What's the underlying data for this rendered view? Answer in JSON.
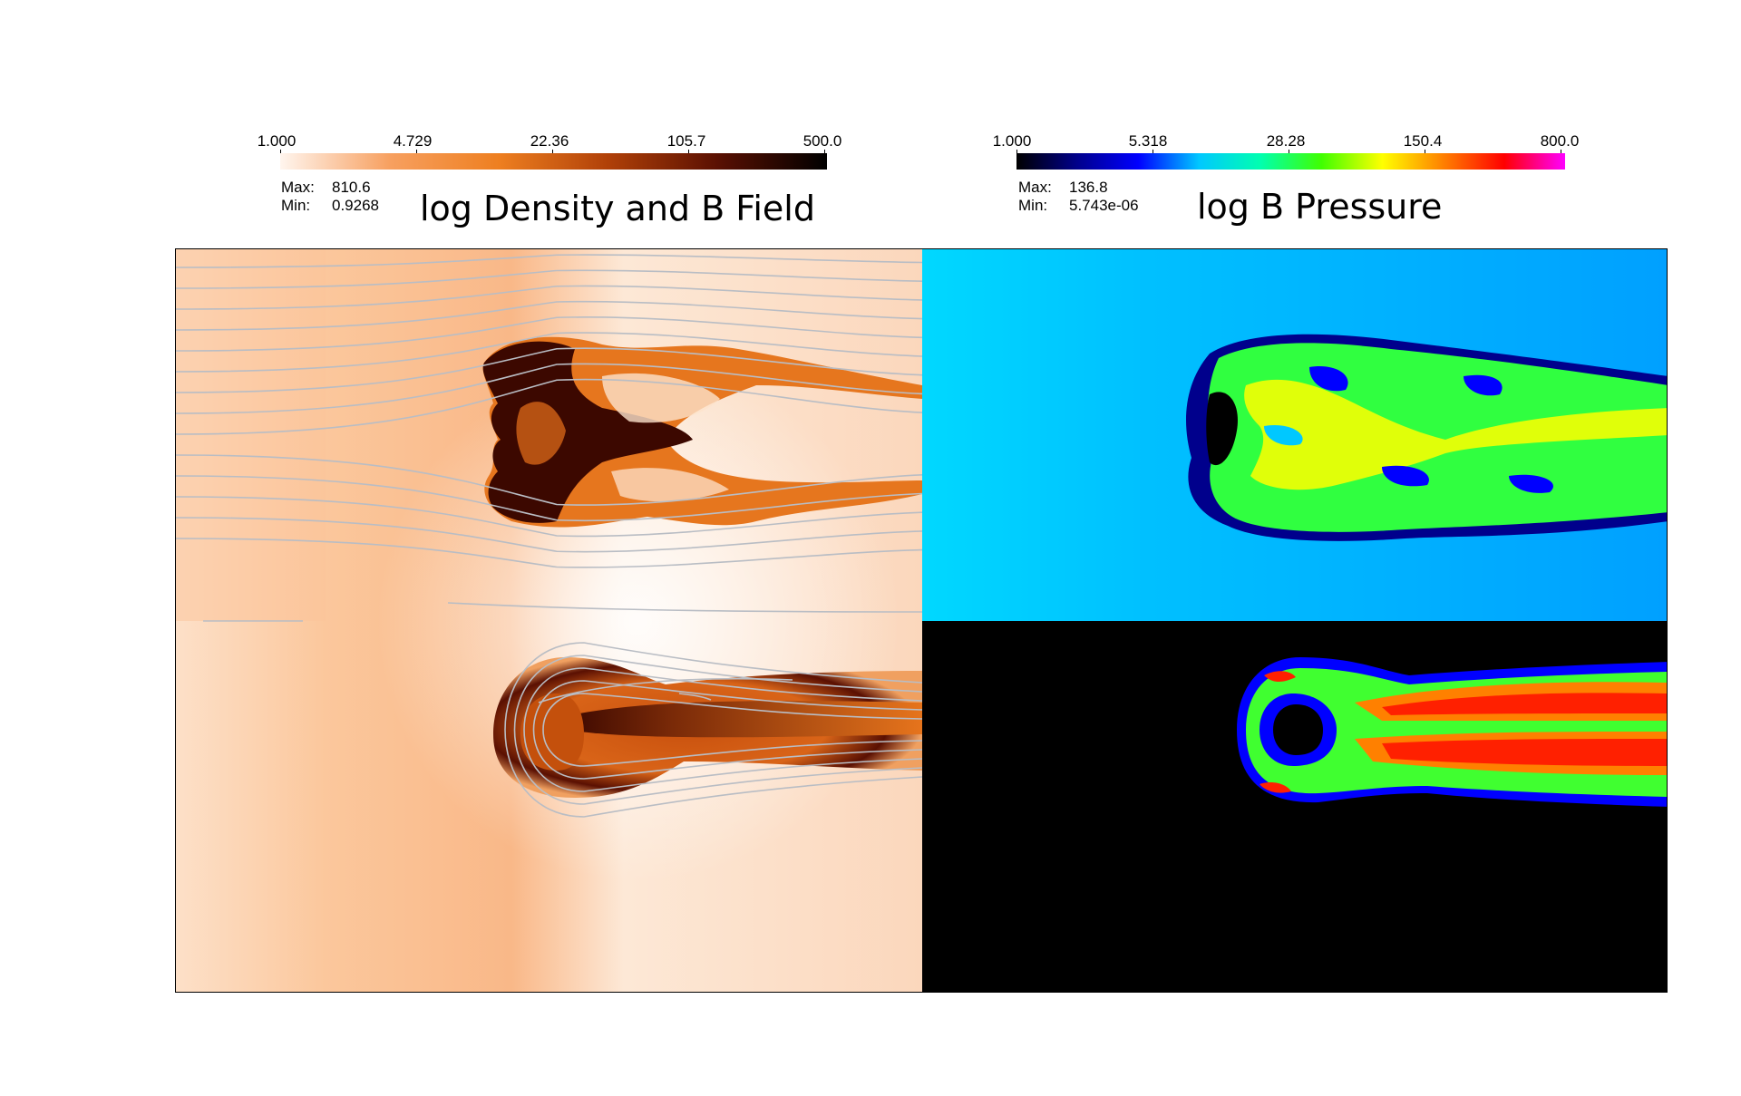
{
  "left_panel": {
    "title": "log Density and B Field",
    "colorbar": {
      "ticks": [
        "1.000",
        "4.729",
        "22.36",
        "105.7",
        "500.0"
      ],
      "colors": [
        "#fff5ee",
        "#f7a060",
        "#ee7f20",
        "#b04008",
        "#5a1002",
        "#000000"
      ]
    },
    "stats": {
      "max_label": "Max:",
      "max_value": "810.6",
      "min_label": "Min:",
      "min_value": "0.9268"
    }
  },
  "right_panel": {
    "title": "log B Pressure",
    "colorbar": {
      "ticks": [
        "1.000",
        "5.318",
        "28.28",
        "150.4",
        "800.0"
      ],
      "colors": [
        "#000000",
        "#00008c",
        "#0000ff",
        "#00c8ff",
        "#00ffb0",
        "#40ff00",
        "#ffff00",
        "#ff8000",
        "#ff0000",
        "#ff00ff"
      ]
    },
    "stats": {
      "max_label": "Max:",
      "max_value": "136.8",
      "min_label": "Min:",
      "min_value": "5.743e-06"
    }
  },
  "colors": {
    "density_background": "#fbc79c",
    "density_dark": "#3c0800",
    "density_mid": "#d9641a",
    "field_line": "#b9bdc4",
    "pressure_background": "#00d8ff",
    "pressure_black": "#000000"
  }
}
